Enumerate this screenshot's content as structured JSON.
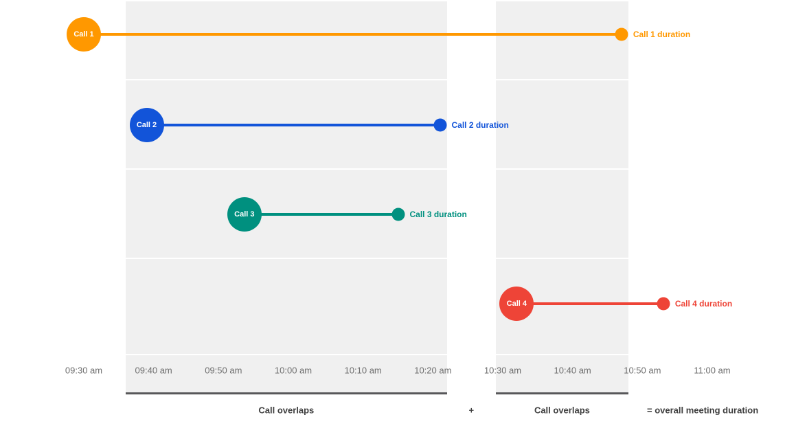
{
  "chart_data": {
    "type": "bar",
    "subtype": "timeline-gantt",
    "title": "",
    "x_axis": {
      "range_start": "09:18",
      "range_end": "11:12",
      "ticks": [
        "09:30 am",
        "09:40 am",
        "09:50 am",
        "10:00 am",
        "10:10 am",
        "10:20 am",
        "10:30 am",
        "10:40 am",
        "10:50 am",
        "11:00 am"
      ]
    },
    "calls": [
      {
        "name": "Call 1",
        "duration_label": "Call 1 duration",
        "start": "09:30",
        "end": "10:47",
        "color": "#FF9800"
      },
      {
        "name": "Call 2",
        "duration_label": "Call 2 duration",
        "start": "09:39",
        "end": "10:21",
        "color": "#1254D9"
      },
      {
        "name": "Call 3",
        "duration_label": "Call 3 duration",
        "start": "09:53",
        "end": "10:15",
        "color": "#00907F"
      },
      {
        "name": "Call 4",
        "duration_label": "Call 4 duration",
        "start": "10:32",
        "end": "10:53",
        "color": "#EE4437"
      }
    ],
    "overlap_bands": [
      {
        "label": "Call overlaps",
        "start": "09:36",
        "end": "10:22"
      },
      {
        "label": "Call overlaps",
        "start": "10:29",
        "end": "10:48"
      }
    ],
    "annotations": {
      "plus": "+",
      "equals": "= overall meeting duration"
    },
    "legend_position": "none",
    "grid": true
  },
  "colors": {
    "band_fill": "#F0F0F0",
    "band_underline": "#58585A",
    "gridline": "#ECECEC",
    "gridline_over_band": "#FFFFFF",
    "tick_text": "#6E6E6E",
    "annotation_text": "#3F3F3F",
    "background": "#FFFFFF"
  }
}
